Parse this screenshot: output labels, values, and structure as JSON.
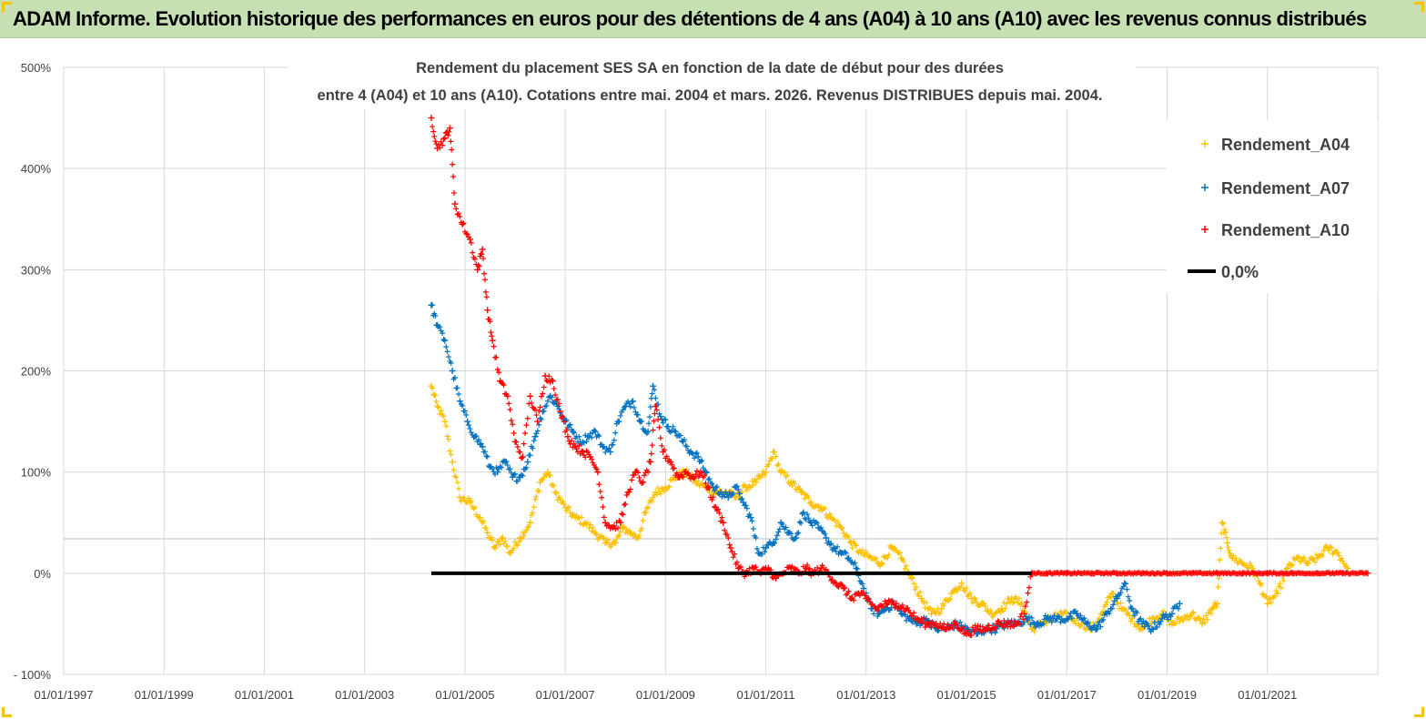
{
  "header": {
    "title": "ADAM Informe. Evolution historique des performances en euros pour des détentions de 4 ans (A04) à 10 ans (A10) avec les revenus connus distribués"
  },
  "chart_data": {
    "type": "scatter",
    "title_lines": [
      "Rendement du placement SES SA en fonction de la date de début pour des durées",
      "entre 4 (A04) et 10 ans (A10). Cotations entre mai. 2004 et mars. 2026. Revenus DISTRIBUES depuis mai. 2004."
    ],
    "xlabel": "",
    "ylabel": "",
    "x_tick_labels": [
      "01/01/1997",
      "01/01/1999",
      "01/01/2001",
      "01/01/2003",
      "01/01/2005",
      "01/01/2007",
      "01/01/2009",
      "01/01/2011",
      "01/01/2013",
      "01/01/2015",
      "01/01/2017",
      "01/01/2019",
      "01/01/2021"
    ],
    "x_ticks_year": [
      1997,
      1999,
      2001,
      2003,
      2005,
      2007,
      2009,
      2011,
      2013,
      2015,
      2017,
      2019,
      2021
    ],
    "xlim_year": [
      1997,
      2023.2
    ],
    "y_tick_labels": [
      "- 100%",
      "0%",
      "100%",
      "200%",
      "300%",
      "400%",
      "500%"
    ],
    "y_ticks": [
      -100,
      0,
      100,
      200,
      300,
      400,
      500
    ],
    "ylim": [
      -100,
      500
    ],
    "grid": true,
    "legend_position": "top-right",
    "series": [
      {
        "name": "Rendement_A04",
        "color": "#ffc000",
        "marker": "+",
        "points": [
          [
            2004.33,
            185
          ],
          [
            2004.45,
            165
          ],
          [
            2004.6,
            150
          ],
          [
            2004.75,
            110
          ],
          [
            2004.9,
            75
          ],
          [
            2005.1,
            70
          ],
          [
            2005.3,
            55
          ],
          [
            2005.45,
            40
          ],
          [
            2005.6,
            25
          ],
          [
            2005.75,
            35
          ],
          [
            2005.9,
            20
          ],
          [
            2006.1,
            35
          ],
          [
            2006.3,
            50
          ],
          [
            2006.5,
            90
          ],
          [
            2006.65,
            100
          ],
          [
            2006.8,
            80
          ],
          [
            2007.0,
            65
          ],
          [
            2007.2,
            55
          ],
          [
            2007.4,
            50
          ],
          [
            2007.6,
            40
          ],
          [
            2007.8,
            30
          ],
          [
            2008.0,
            30
          ],
          [
            2008.15,
            45
          ],
          [
            2008.3,
            40
          ],
          [
            2008.45,
            35
          ],
          [
            2008.6,
            60
          ],
          [
            2008.8,
            80
          ],
          [
            2009.0,
            85
          ],
          [
            2009.2,
            95
          ],
          [
            2009.4,
            100
          ],
          [
            2009.6,
            90
          ],
          [
            2009.8,
            85
          ],
          [
            2010.0,
            80
          ],
          [
            2010.2,
            80
          ],
          [
            2010.4,
            75
          ],
          [
            2010.6,
            85
          ],
          [
            2010.8,
            90
          ],
          [
            2011.0,
            100
          ],
          [
            2011.15,
            120
          ],
          [
            2011.3,
            100
          ],
          [
            2011.5,
            90
          ],
          [
            2011.7,
            80
          ],
          [
            2011.9,
            70
          ],
          [
            2012.1,
            65
          ],
          [
            2012.3,
            55
          ],
          [
            2012.5,
            45
          ],
          [
            2012.7,
            30
          ],
          [
            2012.9,
            20
          ],
          [
            2013.1,
            15
          ],
          [
            2013.3,
            10
          ],
          [
            2013.5,
            25
          ],
          [
            2013.7,
            15
          ],
          [
            2013.9,
            -5
          ],
          [
            2014.1,
            -25
          ],
          [
            2014.3,
            -40
          ],
          [
            2014.5,
            -35
          ],
          [
            2014.7,
            -20
          ],
          [
            2014.9,
            -10
          ],
          [
            2015.1,
            -25
          ],
          [
            2015.3,
            -30
          ],
          [
            2015.5,
            -40
          ],
          [
            2015.7,
            -35
          ],
          [
            2015.9,
            -25
          ],
          [
            2016.1,
            -30
          ],
          [
            2016.3,
            -55
          ],
          [
            2016.5,
            -50
          ],
          [
            2016.7,
            -45
          ],
          [
            2016.9,
            -40
          ],
          [
            2017.1,
            -45
          ],
          [
            2017.3,
            -50
          ],
          [
            2017.5,
            -55
          ],
          [
            2017.7,
            -40
          ],
          [
            2017.9,
            -20
          ],
          [
            2018.1,
            -35
          ],
          [
            2018.3,
            -45
          ],
          [
            2018.5,
            -55
          ],
          [
            2018.7,
            -45
          ],
          [
            2018.9,
            -40
          ],
          [
            2019.1,
            -50
          ],
          [
            2019.3,
            -45
          ],
          [
            2019.5,
            -40
          ],
          [
            2019.7,
            -50
          ],
          [
            2019.9,
            -35
          ],
          [
            2020.0,
            -30
          ],
          [
            2020.1,
            50
          ],
          [
            2020.2,
            30
          ],
          [
            2020.3,
            15
          ],
          [
            2020.5,
            10
          ],
          [
            2020.7,
            5
          ],
          [
            2020.85,
            -10
          ],
          [
            2021.0,
            -30
          ],
          [
            2021.2,
            -20
          ],
          [
            2021.4,
            5
          ],
          [
            2021.6,
            15
          ],
          [
            2021.8,
            10
          ],
          [
            2022.0,
            15
          ],
          [
            2022.2,
            25
          ],
          [
            2022.4,
            20
          ],
          [
            2022.6,
            5
          ]
        ]
      },
      {
        "name": "Rendement_A07",
        "color": "#0070c0",
        "marker": "+",
        "points": [
          [
            2004.33,
            265
          ],
          [
            2004.45,
            245
          ],
          [
            2004.6,
            230
          ],
          [
            2004.75,
            200
          ],
          [
            2004.9,
            170
          ],
          [
            2005.05,
            150
          ],
          [
            2005.2,
            135
          ],
          [
            2005.35,
            125
          ],
          [
            2005.5,
            105
          ],
          [
            2005.65,
            100
          ],
          [
            2005.8,
            110
          ],
          [
            2005.95,
            95
          ],
          [
            2006.1,
            95
          ],
          [
            2006.25,
            110
          ],
          [
            2006.4,
            135
          ],
          [
            2006.55,
            160
          ],
          [
            2006.7,
            175
          ],
          [
            2006.85,
            165
          ],
          [
            2007.0,
            150
          ],
          [
            2007.15,
            140
          ],
          [
            2007.3,
            130
          ],
          [
            2007.45,
            135
          ],
          [
            2007.6,
            140
          ],
          [
            2007.75,
            125
          ],
          [
            2007.9,
            120
          ],
          [
            2008.05,
            150
          ],
          [
            2008.2,
            165
          ],
          [
            2008.35,
            170
          ],
          [
            2008.5,
            150
          ],
          [
            2008.65,
            140
          ],
          [
            2008.75,
            185
          ],
          [
            2008.9,
            155
          ],
          [
            2009.05,
            145
          ],
          [
            2009.2,
            140
          ],
          [
            2009.35,
            130
          ],
          [
            2009.5,
            120
          ],
          [
            2009.65,
            115
          ],
          [
            2009.8,
            100
          ],
          [
            2009.95,
            85
          ],
          [
            2010.1,
            80
          ],
          [
            2010.25,
            75
          ],
          [
            2010.4,
            85
          ],
          [
            2010.55,
            70
          ],
          [
            2010.7,
            55
          ],
          [
            2010.85,
            20
          ],
          [
            2011.0,
            25
          ],
          [
            2011.15,
            30
          ],
          [
            2011.3,
            50
          ],
          [
            2011.45,
            40
          ],
          [
            2011.6,
            35
          ],
          [
            2011.75,
            60
          ],
          [
            2011.9,
            50
          ],
          [
            2012.05,
            45
          ],
          [
            2012.2,
            35
          ],
          [
            2012.35,
            25
          ],
          [
            2012.5,
            20
          ],
          [
            2012.65,
            15
          ],
          [
            2012.8,
            5
          ],
          [
            2012.95,
            -15
          ],
          [
            2013.1,
            -35
          ],
          [
            2013.25,
            -40
          ],
          [
            2013.4,
            -35
          ],
          [
            2013.55,
            -30
          ],
          [
            2013.7,
            -40
          ],
          [
            2013.85,
            -45
          ],
          [
            2014.0,
            -50
          ],
          [
            2014.2,
            -45
          ],
          [
            2014.4,
            -55
          ],
          [
            2014.6,
            -55
          ],
          [
            2014.8,
            -50
          ],
          [
            2015.0,
            -55
          ],
          [
            2015.2,
            -60
          ],
          [
            2015.4,
            -55
          ],
          [
            2015.6,
            -55
          ],
          [
            2015.8,
            -50
          ],
          [
            2016.0,
            -50
          ],
          [
            2016.2,
            -45
          ],
          [
            2016.4,
            -50
          ],
          [
            2016.6,
            -45
          ],
          [
            2016.8,
            -45
          ],
          [
            2017.0,
            -45
          ],
          [
            2017.2,
            -40
          ],
          [
            2017.4,
            -50
          ],
          [
            2017.6,
            -55
          ],
          [
            2017.8,
            -40
          ],
          [
            2018.0,
            -25
          ],
          [
            2018.15,
            -10
          ],
          [
            2018.3,
            -35
          ],
          [
            2018.5,
            -50
          ],
          [
            2018.7,
            -55
          ],
          [
            2018.9,
            -45
          ],
          [
            2019.1,
            -40
          ],
          [
            2019.25,
            -30
          ]
        ]
      },
      {
        "name": "Rendement_A10",
        "color": "#ff0000",
        "marker": "+",
        "points": [
          [
            2004.33,
            450
          ],
          [
            2004.45,
            420
          ],
          [
            2004.6,
            430
          ],
          [
            2004.7,
            440
          ],
          [
            2004.8,
            365
          ],
          [
            2004.95,
            345
          ],
          [
            2005.1,
            330
          ],
          [
            2005.25,
            300
          ],
          [
            2005.35,
            320
          ],
          [
            2005.45,
            260
          ],
          [
            2005.55,
            230
          ],
          [
            2005.7,
            190
          ],
          [
            2005.85,
            175
          ],
          [
            2006.0,
            130
          ],
          [
            2006.15,
            115
          ],
          [
            2006.3,
            175
          ],
          [
            2006.45,
            150
          ],
          [
            2006.6,
            195
          ],
          [
            2006.75,
            190
          ],
          [
            2006.9,
            160
          ],
          [
            2007.05,
            135
          ],
          [
            2007.2,
            125
          ],
          [
            2007.35,
            120
          ],
          [
            2007.5,
            115
          ],
          [
            2007.65,
            100
          ],
          [
            2007.8,
            50
          ],
          [
            2007.95,
            45
          ],
          [
            2008.1,
            50
          ],
          [
            2008.25,
            80
          ],
          [
            2008.4,
            100
          ],
          [
            2008.55,
            90
          ],
          [
            2008.7,
            110
          ],
          [
            2008.8,
            165
          ],
          [
            2008.95,
            120
          ],
          [
            2009.1,
            110
          ],
          [
            2009.25,
            95
          ],
          [
            2009.4,
            100
          ],
          [
            2009.55,
            95
          ],
          [
            2009.7,
            100
          ],
          [
            2009.85,
            85
          ],
          [
            2010.0,
            65
          ],
          [
            2010.15,
            50
          ],
          [
            2010.3,
            25
          ],
          [
            2010.45,
            5
          ],
          [
            2010.6,
            0
          ],
          [
            2010.75,
            5
          ],
          [
            2010.9,
            0
          ],
          [
            2011.05,
            5
          ],
          [
            2011.2,
            -5
          ],
          [
            2011.35,
            0
          ],
          [
            2011.5,
            5
          ],
          [
            2011.65,
            0
          ],
          [
            2011.8,
            5
          ],
          [
            2011.95,
            0
          ],
          [
            2012.1,
            5
          ],
          [
            2012.25,
            0
          ],
          [
            2012.4,
            -10
          ],
          [
            2012.55,
            -15
          ],
          [
            2012.7,
            -25
          ],
          [
            2012.85,
            -20
          ],
          [
            2013.0,
            -25
          ],
          [
            2013.2,
            -35
          ],
          [
            2013.4,
            -30
          ],
          [
            2013.6,
            -30
          ],
          [
            2013.8,
            -35
          ],
          [
            2014.0,
            -45
          ],
          [
            2014.2,
            -50
          ],
          [
            2014.4,
            -50
          ],
          [
            2014.6,
            -55
          ],
          [
            2014.8,
            -50
          ],
          [
            2015.0,
            -60
          ],
          [
            2015.2,
            -55
          ],
          [
            2015.4,
            -55
          ],
          [
            2015.6,
            -50
          ],
          [
            2015.8,
            -50
          ],
          [
            2016.0,
            -50
          ],
          [
            2016.15,
            -40
          ],
          [
            2016.3,
            0
          ],
          [
            2016.6,
            0
          ],
          [
            2017.0,
            0
          ],
          [
            2017.5,
            0
          ],
          [
            2018.0,
            0
          ],
          [
            2018.5,
            0
          ],
          [
            2019.0,
            0
          ],
          [
            2019.5,
            0
          ],
          [
            2020.0,
            0
          ],
          [
            2020.5,
            0
          ],
          [
            2021.0,
            0
          ],
          [
            2021.5,
            0
          ],
          [
            2022.0,
            0
          ],
          [
            2022.5,
            0
          ],
          [
            2023.0,
            0
          ]
        ]
      },
      {
        "name": "0,0%",
        "color": "#000000",
        "marker": "line",
        "points": [
          [
            2004.33,
            0
          ],
          [
            2016.3,
            0
          ]
        ]
      }
    ]
  }
}
